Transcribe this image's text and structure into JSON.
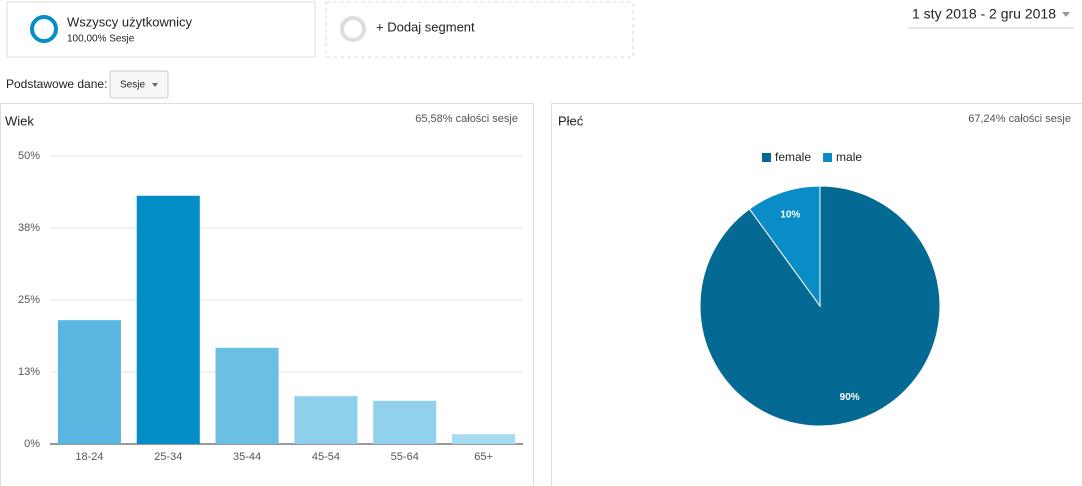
{
  "segments": [
    {
      "name": "Wszyscy użytkownicy",
      "detail": "100,00% Sesje"
    }
  ],
  "add_segment": "+ Dodaj segment",
  "date_range": "1 sty 2018 - 2 gru 2018",
  "primary_dimension": {
    "label": "Podstawowe dane:",
    "value": "Sesje"
  },
  "chart_data": [
    {
      "type": "bar",
      "title": "Wiek",
      "subtitle": "65,58% całości sesje",
      "categories": [
        "18-24",
        "25-34",
        "35-44",
        "45-54",
        "55-64",
        "65+"
      ],
      "values": [
        21.5,
        43.1,
        16.7,
        8.3,
        7.5,
        1.7
      ],
      "colors": [
        "#58b6e0",
        "#058dc7",
        "#6bbfe3",
        "#8ecfec",
        "#92d1ed",
        "#a6dbf1"
      ],
      "ylim": [
        0,
        50
      ],
      "yticks": [
        {
          "value": 0,
          "label": "0%"
        },
        {
          "value": 12.5,
          "label": "13%"
        },
        {
          "value": 25,
          "label": "25%"
        },
        {
          "value": 37.5,
          "label": "38%"
        },
        {
          "value": 50,
          "label": "50%"
        }
      ],
      "grid": true
    },
    {
      "type": "pie",
      "title": "Płeć",
      "subtitle": "67,24% całości sesje",
      "labels": [
        "female",
        "male"
      ],
      "values": [
        90,
        10
      ],
      "value_labels": [
        "90%",
        "10%"
      ],
      "colors": [
        "#056a93",
        "#0a8dc7"
      ],
      "legend": "top"
    }
  ]
}
